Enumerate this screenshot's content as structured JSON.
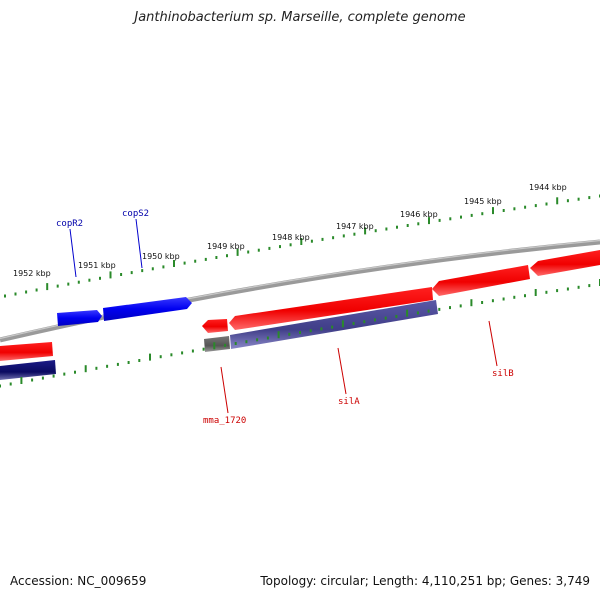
{
  "title": "Janthinobacterium sp. Marseille, complete genome",
  "accession": "Accession: NC_009659",
  "summary": "Topology: circular; Length: 4,110,251 bp; Genes: 3,749",
  "colors": {
    "backbone": "#808080",
    "tick": "#2a8a2a",
    "forward_gene": "#0000ff",
    "red_gene": "#ff0000",
    "purple_gene": "#4a4890",
    "gray_gene": "#666666",
    "navy_gene": "#101070",
    "blue_label": "#0000aa",
    "red_label": "#cc0000"
  },
  "ticks": [
    {
      "label": "1952 kbp"
    },
    {
      "label": "1951 kbp"
    },
    {
      "label": "1950 kbp"
    },
    {
      "label": "1949 kbp"
    },
    {
      "label": "1948 kbp"
    },
    {
      "label": "1947 kbp"
    },
    {
      "label": "1946 kbp"
    },
    {
      "label": "1945 kbp"
    },
    {
      "label": "1944 kbp"
    }
  ],
  "gene_labels": [
    {
      "name": "copR2",
      "color": "blue"
    },
    {
      "name": "copS2",
      "color": "blue"
    },
    {
      "name": "mma_1720",
      "color": "red"
    },
    {
      "name": "silA",
      "color": "red"
    },
    {
      "name": "silB",
      "color": "red"
    }
  ]
}
